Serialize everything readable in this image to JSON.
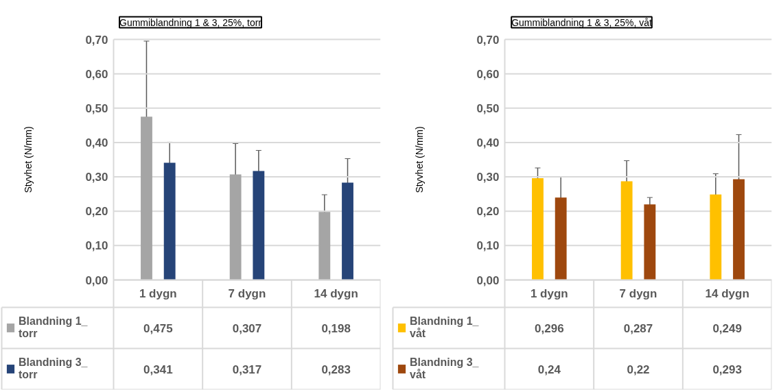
{
  "chart_data": [
    {
      "type": "bar",
      "title": "Gummiblandning 1 & 3, 25%, torr",
      "ylabel": "Styvhet (N/mm)",
      "categories": [
        "1 dygn",
        "7 dygn",
        "14 dygn"
      ],
      "ylim": [
        0,
        0.7
      ],
      "yticks": [
        {
          "value": 0,
          "label": "0,00"
        },
        {
          "value": 0.1,
          "label": "0,10"
        },
        {
          "value": 0.2,
          "label": "0,20"
        },
        {
          "value": 0.3,
          "label": "0,30"
        },
        {
          "value": 0.4,
          "label": "0,40"
        },
        {
          "value": 0.5,
          "label": "0,50"
        },
        {
          "value": 0.6,
          "label": "0,60"
        },
        {
          "value": 0.7,
          "label": "0,70"
        }
      ],
      "grid": "y",
      "legend": "bottom",
      "series": [
        {
          "name": "Blandning 1_ torr",
          "color": "#a5a5a5",
          "values": [
            0.475,
            0.307,
            0.198
          ],
          "errors": [
            0.22,
            0.09,
            0.05
          ],
          "value_labels": [
            "0,475",
            "0,307",
            "0,198"
          ]
        },
        {
          "name": "Blandning 3_ torr",
          "color": "#264478",
          "values": [
            0.341,
            0.317,
            0.283
          ],
          "errors": [
            0.06,
            0.06,
            0.07
          ],
          "value_labels": [
            "0,341",
            "0,317",
            "0,283"
          ]
        }
      ]
    },
    {
      "type": "bar",
      "title": "Gummiblandning 1 & 3, 25%, våt",
      "ylabel": "Styvhet (N/mm)",
      "categories": [
        "1 dygn",
        "7 dygn",
        "14 dygn"
      ],
      "ylim": [
        0,
        0.7
      ],
      "yticks": [
        {
          "value": 0,
          "label": "0,00"
        },
        {
          "value": 0.1,
          "label": "0,10"
        },
        {
          "value": 0.2,
          "label": "0,20"
        },
        {
          "value": 0.3,
          "label": "0,30"
        },
        {
          "value": 0.4,
          "label": "0,40"
        },
        {
          "value": 0.5,
          "label": "0,50"
        },
        {
          "value": 0.6,
          "label": "0,60"
        },
        {
          "value": 0.7,
          "label": "0,70"
        }
      ],
      "grid": "y",
      "legend": "bottom",
      "series": [
        {
          "name": "Blandning 1_ våt",
          "color": "#ffc000",
          "values": [
            0.296,
            0.287,
            0.249
          ],
          "errors": [
            0.03,
            0.06,
            0.06
          ],
          "value_labels": [
            "0,296",
            "0,287",
            "0,249"
          ]
        },
        {
          "name": "Blandning 3_ våt",
          "color": "#9e480e",
          "values": [
            0.24,
            0.22,
            0.293
          ],
          "errors": [
            0.06,
            0.02,
            0.13
          ],
          "value_labels": [
            "0,24",
            "0,22",
            "0,293"
          ]
        }
      ]
    }
  ]
}
